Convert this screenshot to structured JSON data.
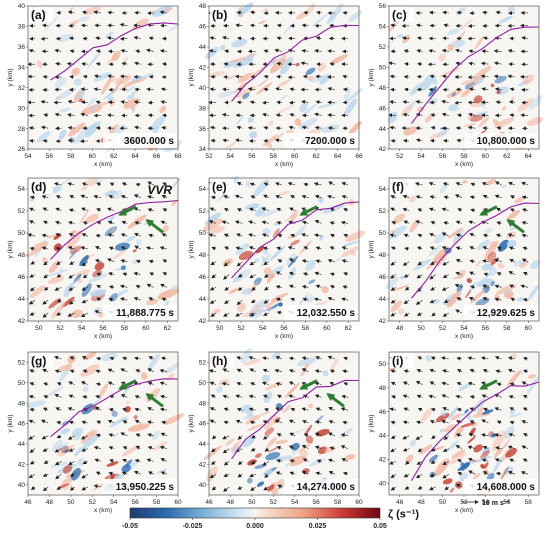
{
  "chart_data": {
    "type": "heatmap",
    "colorbar": {
      "label": "ζ (s⁻¹)",
      "ticks": [
        "-0.05",
        "-0.025",
        "0.000",
        "0.025",
        "0.05"
      ],
      "range": [
        -0.05,
        0.05
      ],
      "colormap": "RdBu_r"
    },
    "reference_vector": {
      "label": "10 m s⁻¹"
    },
    "panels": [
      {
        "label": "(a)",
        "time": "3600.000 s",
        "xlabel": "x (km)",
        "ylabel": "y (km)",
        "xticks": [
          "54",
          "56",
          "58",
          "60",
          "62",
          "64",
          "66",
          "68"
        ],
        "yticks": [
          "26",
          "28",
          "30",
          "32",
          "34",
          "36",
          "38",
          "40"
        ],
        "xlim": [
          54,
          68
        ],
        "ylim": [
          26,
          40
        ],
        "annotation": "",
        "arrows": []
      },
      {
        "label": "(b)",
        "time": "7200.000 s",
        "xlabel": "x (km)",
        "ylabel": "y (km)",
        "xticks": [
          "52",
          "54",
          "56",
          "58",
          "60",
          "62",
          "64",
          "66"
        ],
        "yticks": [
          "34",
          "36",
          "38",
          "40",
          "42",
          "44",
          "46",
          "48"
        ],
        "xlim": [
          52,
          66
        ],
        "ylim": [
          34,
          48
        ],
        "annotation": "",
        "arrows": []
      },
      {
        "label": "(c)",
        "time": "10,800.000 s",
        "xlabel": "x (km)",
        "ylabel": "y (km)",
        "xticks": [
          "52",
          "54",
          "56",
          "58",
          "60",
          "62",
          "64"
        ],
        "yticks": [
          "42",
          "44",
          "46",
          "48",
          "50",
          "52",
          "54",
          "56"
        ],
        "xlim": [
          51,
          65
        ],
        "ylim": [
          42,
          56
        ],
        "annotation": "",
        "arrows": []
      },
      {
        "label": "(d)",
        "time": "11,888.775 s",
        "xlabel": "x (km)",
        "ylabel": "y (km)",
        "xticks": [
          "50",
          "52",
          "54",
          "56",
          "58",
          "60",
          "62"
        ],
        "yticks": [
          "42",
          "44",
          "46",
          "48",
          "50",
          "52",
          "54"
        ],
        "xlim": [
          49,
          63
        ],
        "ylim": [
          42,
          55
        ],
        "annotation": "VVR",
        "arrows": [
          "green-arrow",
          "green-arrow"
        ]
      },
      {
        "label": "(e)",
        "time": "12,032.550 s",
        "xlabel": "x (km)",
        "ylabel": "y (km)",
        "xticks": [
          "50",
          "52",
          "54",
          "56",
          "58",
          "60",
          "62"
        ],
        "yticks": [
          "42",
          "44",
          "46",
          "48",
          "50",
          "52",
          "54"
        ],
        "xlim": [
          49,
          63
        ],
        "ylim": [
          42,
          55
        ],
        "annotation": "",
        "arrows": [
          "green-arrow"
        ]
      },
      {
        "label": "(f)",
        "time": "12,929.625 s",
        "xlabel": "x (km)",
        "ylabel": "y (km)",
        "xticks": [
          "48",
          "50",
          "52",
          "54",
          "56",
          "58",
          "60"
        ],
        "yticks": [
          "42",
          "44",
          "46",
          "48",
          "50",
          "52",
          "54"
        ],
        "xlim": [
          47,
          61
        ],
        "ylim": [
          42,
          55
        ],
        "annotation": "",
        "arrows": [
          "green-arrow",
          "green-arrow"
        ]
      },
      {
        "label": "(g)",
        "time": "13,950.225 s",
        "xlabel": "x (km)",
        "ylabel": "y (km)",
        "xticks": [
          "46",
          "48",
          "50",
          "52",
          "54",
          "56",
          "58",
          "60"
        ],
        "yticks": [
          "40",
          "42",
          "44",
          "46",
          "48",
          "50",
          "52"
        ],
        "xlim": [
          46,
          60
        ],
        "ylim": [
          39,
          53
        ],
        "annotation": "",
        "arrows": [
          "green-arrow",
          "green-arrow"
        ]
      },
      {
        "label": "(h)",
        "time": "14,274.000 s",
        "xlabel": "x (km)",
        "ylabel": "y (km)",
        "xticks": [
          "46",
          "48",
          "50",
          "52",
          "54",
          "56",
          "58",
          "60"
        ],
        "yticks": [
          "40",
          "42",
          "44",
          "46",
          "48",
          "50",
          "52"
        ],
        "xlim": [
          46,
          60
        ],
        "ylim": [
          39,
          53
        ],
        "annotation": "",
        "arrows": [
          "green-arrow",
          "green-arrow"
        ]
      },
      {
        "label": "(i)",
        "time": "14,608.000 s",
        "xlabel": "x (km)",
        "ylabel": "y (km)",
        "xticks": [
          "46",
          "48",
          "50",
          "52",
          "54",
          "56",
          "58"
        ],
        "yticks": [
          "40",
          "42",
          "44",
          "46",
          "48",
          "50"
        ],
        "xlim": [
          45,
          59
        ],
        "ylim": [
          39,
          51
        ],
        "annotation": "",
        "arrows": [
          "green-arrow"
        ]
      }
    ]
  }
}
